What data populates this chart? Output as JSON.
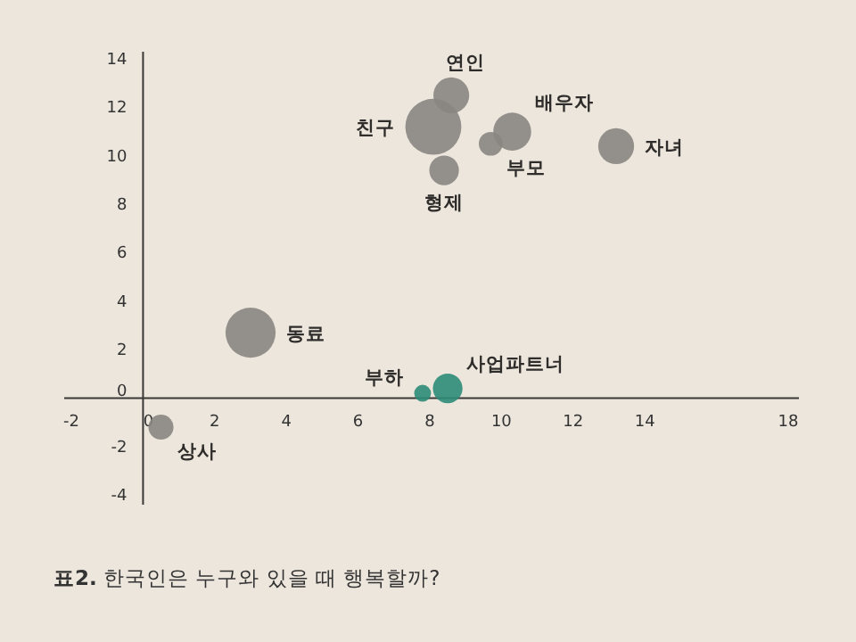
{
  "chart_data": {
    "type": "bubble",
    "xlim": [
      -2.2,
      18.3
    ],
    "ylim": [
      -4.4,
      14.3
    ],
    "xticks": [
      -2,
      0,
      2,
      4,
      6,
      8,
      10,
      12,
      14,
      18
    ],
    "yticks": [
      -4,
      -2,
      0,
      2,
      4,
      6,
      8,
      10,
      12,
      14
    ],
    "grid": false,
    "legend": false,
    "annotations": [
      "**표2.** 한국인은 누구와 있을 때 행복할까?"
    ],
    "series": [
      {
        "name": "연인",
        "color": "#8a8682",
        "x": [
          8.6
        ],
        "values": [
          12.5
        ],
        "sizes": [
          0.41
        ]
      },
      {
        "name": "친구",
        "color": "#8a8682",
        "x": [
          8.1
        ],
        "values": [
          11.2
        ],
        "sizes": [
          1
        ]
      },
      {
        "name": "배우자",
        "color": "#8a8682",
        "x": [
          10.3
        ],
        "values": [
          11.0
        ],
        "sizes": [
          0.46
        ]
      },
      {
        "name": "부모",
        "color": "#8a8682",
        "x": [
          9.7
        ],
        "values": [
          10.5
        ],
        "sizes": [
          0.18
        ]
      },
      {
        "name": "형제",
        "color": "#8a8682",
        "x": [
          8.4
        ],
        "values": [
          9.4
        ],
        "sizes": [
          0.28
        ]
      },
      {
        "name": "자녀",
        "color": "#8a8682",
        "x": [
          13.2
        ],
        "values": [
          10.4
        ],
        "sizes": [
          0.41
        ]
      },
      {
        "name": "동료",
        "color": "#8a8682",
        "x": [
          3.0
        ],
        "values": [
          2.7
        ],
        "sizes": [
          0.8
        ]
      },
      {
        "name": "부하",
        "color": "#2e8b78",
        "x": [
          7.8
        ],
        "values": [
          0.2
        ],
        "sizes": [
          0.09
        ]
      },
      {
        "name": "사업파트너",
        "color": "#2e8b78",
        "x": [
          8.5
        ],
        "values": [
          0.4
        ],
        "sizes": [
          0.28
        ]
      },
      {
        "name": "상사",
        "color": "#8a8682",
        "x": [
          0.5
        ],
        "values": [
          -1.2
        ],
        "sizes": [
          0.2
        ]
      }
    ]
  }
}
